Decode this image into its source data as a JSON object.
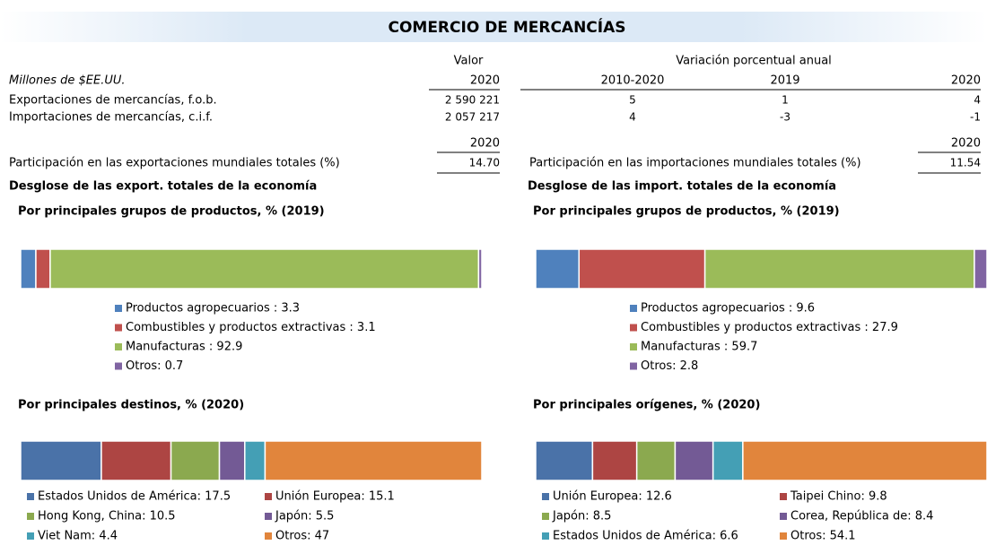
{
  "header": {
    "title": "COMERCIO DE MERCANCÍAS"
  },
  "table": {
    "value_header": "Valor",
    "variation_header": "Variación porcentual anual",
    "unit": "Millones de $EE.UU.",
    "columns": [
      "2020",
      "2010-2020",
      "2019",
      "2020"
    ],
    "rows": [
      {
        "label": "Exportaciones de mercancías, f.o.b.",
        "cells": [
          "2 590 221",
          "5",
          "1",
          "4"
        ]
      },
      {
        "label": "Importaciones de mercancías, c.i.f.",
        "cells": [
          "2 057 217",
          "4",
          "-3",
          "-1"
        ]
      }
    ]
  },
  "shares": [
    {
      "year": "2020",
      "label": "Participación en las exportaciones mundiales totales (%)",
      "value": "14.70"
    },
    {
      "year": "2020",
      "label": "Participación en las importaciones mundiales totales (%)",
      "value": "11.54"
    }
  ],
  "sections": [
    {
      "heading": "Desglose de las export. totales de la economía",
      "charts": [
        {
          "title": "Por principales grupos de productos, % (2019)",
          "series": [
            {
              "label": "Productos agropecuarios : 3.3",
              "value": 3.3,
              "color": "#4f81bd"
            },
            {
              "label": "Combustibles y productos extractivas : 3.1",
              "value": 3.1,
              "color": "#c0504d"
            },
            {
              "label": "Manufacturas : 92.9",
              "value": 92.9,
              "color": "#9bbb59"
            },
            {
              "label": "Otros: 0.7",
              "value": 0.7,
              "color": "#8064a2"
            }
          ]
        },
        {
          "title": "Por principales destinos, % (2020)",
          "series": [
            {
              "label": "Estados Unidos de América: 17.5",
              "value": 17.5,
              "color": "#4a72a8"
            },
            {
              "label": "Unión Europea: 15.1",
              "value": 15.1,
              "color": "#ad4543"
            },
            {
              "label": "Hong Kong, China: 10.5",
              "value": 10.5,
              "color": "#8ba94f"
            },
            {
              "label": "Japón: 5.5",
              "value": 5.5,
              "color": "#735a95"
            },
            {
              "label": "Viet Nam: 4.4",
              "value": 4.4,
              "color": "#449fb5"
            },
            {
              "label": "Otros: 47",
              "value": 47,
              "color": "#e1853c"
            }
          ]
        }
      ]
    },
    {
      "heading": "Desglose de las import. totales de la economía",
      "charts": [
        {
          "title": "Por principales grupos de productos, % (2019)",
          "series": [
            {
              "label": "Productos agropecuarios : 9.6",
              "value": 9.6,
              "color": "#4f81bd"
            },
            {
              "label": "Combustibles y productos extractivas : 27.9",
              "value": 27.9,
              "color": "#c0504d"
            },
            {
              "label": "Manufacturas : 59.7",
              "value": 59.7,
              "color": "#9bbb59"
            },
            {
              "label": "Otros: 2.8",
              "value": 2.8,
              "color": "#8064a2"
            }
          ]
        },
        {
          "title": "Por principales orígenes, % (2020)",
          "series": [
            {
              "label": "Unión Europea: 12.6",
              "value": 12.6,
              "color": "#4a72a8"
            },
            {
              "label": "Taipei Chino: 9.8",
              "value": 9.8,
              "color": "#ad4543"
            },
            {
              "label": "Japón: 8.5",
              "value": 8.5,
              "color": "#8ba94f"
            },
            {
              "label": "Corea, República de: 8.4",
              "value": 8.4,
              "color": "#735a95"
            },
            {
              "label": "Estados Unidos de América: 6.6",
              "value": 6.6,
              "color": "#449fb5"
            },
            {
              "label": "Otros: 54.1",
              "value": 54.1,
              "color": "#e1853c"
            }
          ]
        }
      ]
    }
  ]
}
